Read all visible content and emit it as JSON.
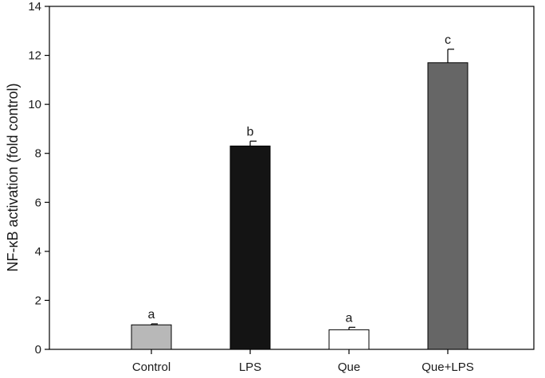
{
  "chart_data": {
    "type": "bar",
    "title": "",
    "xlabel": "",
    "ylabel": "NF-κB activation (fold control)",
    "ylim": [
      0,
      14
    ],
    "yticks": [
      0,
      2,
      4,
      6,
      8,
      10,
      12,
      14
    ],
    "grid": false,
    "categories": [
      "Control",
      "LPS",
      "Que",
      "Que+LPS"
    ],
    "series": [
      {
        "values": [
          1.0,
          8.3,
          0.8,
          11.7
        ],
        "errors": [
          0.04,
          0.2,
          0.1,
          0.55
        ],
        "colors": [
          "#b8b8b8",
          "#141414",
          "#ffffff",
          "#666666"
        ]
      }
    ],
    "annotations": [
      "a",
      "b",
      "a",
      "c"
    ]
  }
}
